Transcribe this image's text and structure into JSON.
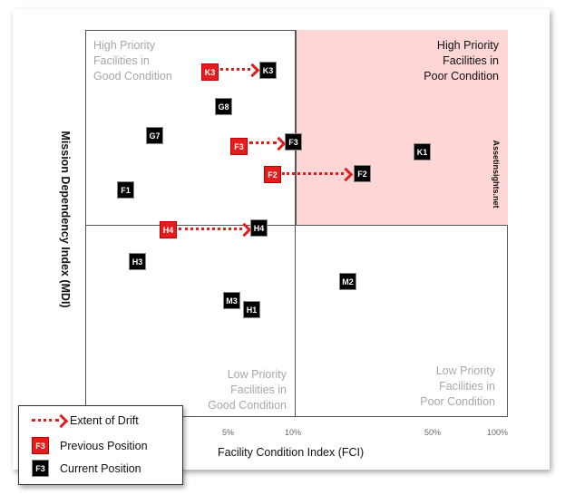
{
  "diagram": {
    "quadrants": {
      "top_left": [
        "High Priority",
        "Facilities in",
        "Good Condition"
      ],
      "top_right": [
        "High Priority",
        "Facilities in",
        "Poor Condition"
      ],
      "bottom_left": [
        "Low Priority",
        "Facilities in",
        "Good Condition"
      ],
      "bottom_right": [
        "Low Priority",
        "Facilities in",
        "Poor Condition"
      ]
    },
    "x_axis_label": "Facility Condition Index (FCI)",
    "y_axis_label": "Mission Dependency Index (MDI)",
    "x_ticks": [
      "5%",
      "10%",
      "50%",
      "100%"
    ],
    "brand": "Assetinsights.net",
    "colors": {
      "previous": "#e31d1d",
      "current": "#000000",
      "poor_quadrant": "#fed6d6",
      "drift_arrow": "#e31d1d"
    },
    "previous_positions": [
      "K3",
      "F3",
      "F2",
      "H4"
    ],
    "current_positions": [
      "K3",
      "G8",
      "G7",
      "F3",
      "K1",
      "F2",
      "F1",
      "H4",
      "H3",
      "M2",
      "M3",
      "H1"
    ],
    "legend": {
      "drift": "Extent of Drift",
      "previous": "Previous Position",
      "current": "Current Position",
      "sample_label": "F3"
    }
  }
}
